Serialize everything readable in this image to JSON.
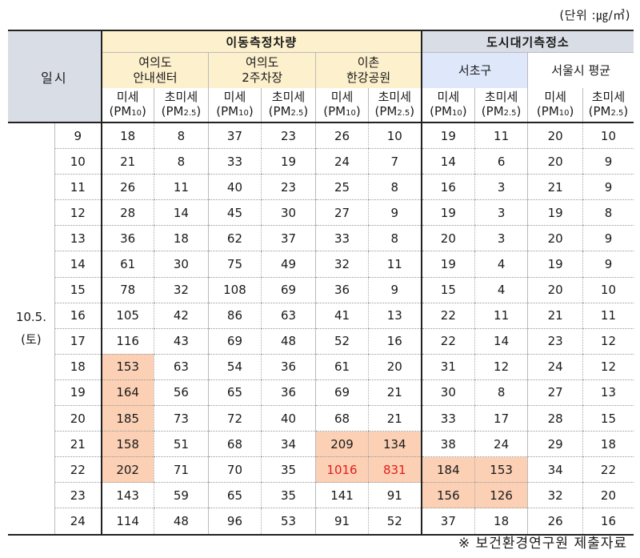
{
  "unit_text": "(단위 :㎍/㎥)",
  "source_text": "※ 보건환경연구원 제출자료",
  "header": {
    "ilsi": "일시",
    "mobile_group": "이동측정차량",
    "city_group": "도시대기측정소",
    "sites": [
      {
        "line1": "여의도",
        "line2": "안내센터"
      },
      {
        "line1": "여의도",
        "line2": "2주차장"
      },
      {
        "line1": "이촌",
        "line2": "한강공원"
      },
      {
        "line1": "서초구",
        "line2": ""
      },
      {
        "line1": "서울시 평균",
        "line2": ""
      }
    ],
    "pm10_label": "미세",
    "pm10_sub": "(PM",
    "pm10_idx": "10",
    "pm25_label": "초미세",
    "pm25_sub": "(PM",
    "pm25_idx": "2.5",
    "close": ")"
  },
  "date": {
    "line1": "10.5.",
    "line2": "(토)"
  },
  "rows": [
    {
      "hour": "9",
      "v": [
        "18",
        "8",
        "37",
        "23",
        "26",
        "10",
        "19",
        "11",
        "20",
        "10"
      ]
    },
    {
      "hour": "10",
      "v": [
        "21",
        "8",
        "33",
        "19",
        "24",
        "7",
        "14",
        "6",
        "20",
        "9"
      ]
    },
    {
      "hour": "11",
      "v": [
        "26",
        "11",
        "40",
        "23",
        "25",
        "8",
        "16",
        "3",
        "21",
        "9"
      ]
    },
    {
      "hour": "12",
      "v": [
        "28",
        "14",
        "45",
        "30",
        "27",
        "9",
        "19",
        "3",
        "19",
        "8"
      ]
    },
    {
      "hour": "13",
      "v": [
        "36",
        "18",
        "62",
        "37",
        "33",
        "8",
        "20",
        "3",
        "20",
        "9"
      ]
    },
    {
      "hour": "14",
      "v": [
        "61",
        "30",
        "75",
        "49",
        "32",
        "11",
        "19",
        "4",
        "19",
        "9"
      ]
    },
    {
      "hour": "15",
      "v": [
        "78",
        "32",
        "108",
        "69",
        "36",
        "9",
        "15",
        "4",
        "20",
        "10"
      ]
    },
    {
      "hour": "16",
      "v": [
        "105",
        "42",
        "86",
        "63",
        "41",
        "13",
        "22",
        "11",
        "21",
        "11"
      ]
    },
    {
      "hour": "17",
      "v": [
        "116",
        "43",
        "69",
        "48",
        "52",
        "16",
        "22",
        "14",
        "23",
        "12"
      ]
    },
    {
      "hour": "18",
      "v": [
        "153",
        "63",
        "54",
        "36",
        "61",
        "20",
        "31",
        "12",
        "24",
        "12"
      ]
    },
    {
      "hour": "19",
      "v": [
        "164",
        "56",
        "65",
        "36",
        "69",
        "21",
        "30",
        "8",
        "27",
        "13"
      ]
    },
    {
      "hour": "20",
      "v": [
        "185",
        "73",
        "72",
        "40",
        "68",
        "21",
        "33",
        "17",
        "28",
        "15"
      ]
    },
    {
      "hour": "21",
      "v": [
        "158",
        "51",
        "68",
        "34",
        "209",
        "134",
        "38",
        "24",
        "29",
        "18"
      ]
    },
    {
      "hour": "22",
      "v": [
        "202",
        "71",
        "70",
        "35",
        "1016",
        "831",
        "184",
        "153",
        "34",
        "22"
      ]
    },
    {
      "hour": "23",
      "v": [
        "143",
        "59",
        "65",
        "35",
        "141",
        "91",
        "156",
        "126",
        "32",
        "20"
      ]
    },
    {
      "hour": "24",
      "v": [
        "114",
        "48",
        "96",
        "53",
        "91",
        "52",
        "37",
        "18",
        "26",
        "16"
      ]
    }
  ],
  "highlight_color": "#fbd0b5",
  "alert_text_color": "#e41c1c",
  "highlights": {
    "9": [
      0
    ],
    "10": [
      0
    ],
    "11": [
      0
    ],
    "12": [
      0,
      4,
      5
    ],
    "13": [
      0,
      4,
      5,
      6,
      7
    ],
    "14": [
      6,
      7
    ]
  },
  "red_text": {
    "13": [
      4,
      5
    ]
  }
}
